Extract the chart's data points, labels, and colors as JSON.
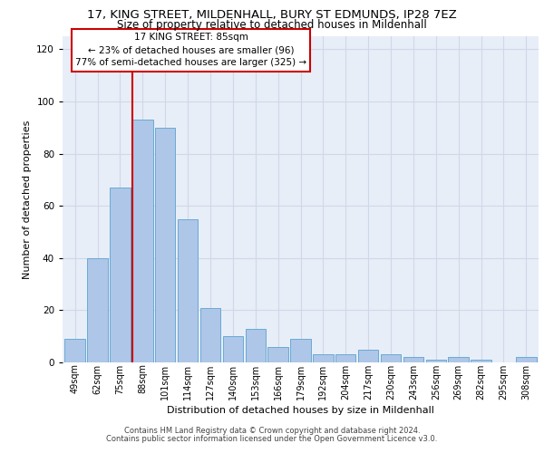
{
  "title_line1": "17, KING STREET, MILDENHALL, BURY ST EDMUNDS, IP28 7EZ",
  "title_line2": "Size of property relative to detached houses in Mildenhall",
  "xlabel": "Distribution of detached houses by size in Mildenhall",
  "ylabel": "Number of detached properties",
  "categories": [
    "49sqm",
    "62sqm",
    "75sqm",
    "88sqm",
    "101sqm",
    "114sqm",
    "127sqm",
    "140sqm",
    "153sqm",
    "166sqm",
    "179sqm",
    "192sqm",
    "204sqm",
    "217sqm",
    "230sqm",
    "243sqm",
    "256sqm",
    "269sqm",
    "282sqm",
    "295sqm",
    "308sqm"
  ],
  "values": [
    9,
    40,
    67,
    93,
    90,
    55,
    21,
    10,
    13,
    6,
    9,
    3,
    3,
    5,
    3,
    2,
    1,
    2,
    1,
    0,
    2
  ],
  "bar_color": "#aec6e8",
  "bar_edge_color": "#6aaad4",
  "vline_color": "#cc0000",
  "annotation_text": "17 KING STREET: 85sqm\n← 23% of detached houses are smaller (96)\n77% of semi-detached houses are larger (325) →",
  "annotation_box_color": "#ffffff",
  "annotation_box_edge": "#cc0000",
  "ylim": [
    0,
    125
  ],
  "yticks": [
    0,
    20,
    40,
    60,
    80,
    100,
    120
  ],
  "grid_color": "#d0d8e8",
  "bg_color": "#e8eef8",
  "footer1": "Contains HM Land Registry data © Crown copyright and database right 2024.",
  "footer2": "Contains public sector information licensed under the Open Government Licence v3.0."
}
